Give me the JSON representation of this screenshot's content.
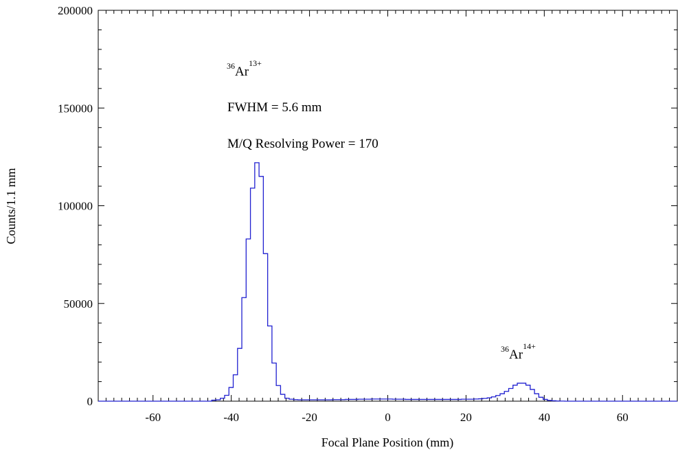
{
  "chart_data": {
    "type": "histogram",
    "xlabel": "Focal Plane Position (mm)",
    "ylabel": "Counts/1.1 mm",
    "xlim": [
      -74,
      74
    ],
    "ylim": [
      0,
      200000
    ],
    "x_ticks": [
      -60,
      -40,
      -20,
      0,
      20,
      40,
      60
    ],
    "y_ticks": [
      0,
      50000,
      100000,
      150000,
      200000
    ],
    "grid": false,
    "line_color": "#1f1fd0",
    "bin_width": 1.1,
    "series": [
      {
        "x": [
          -45.0,
          -43.9,
          -42.8,
          -41.7,
          -40.6,
          -39.5,
          -38.4,
          -37.3,
          -36.2,
          -35.1,
          -34.0,
          -32.9,
          -31.8,
          -30.7,
          -29.6,
          -28.5,
          -27.4,
          -26.3,
          -25.2,
          -24.1,
          -23.0,
          -21.9,
          -20.8,
          -19.7,
          -18.6,
          -17.5,
          -16.4,
          -15.3,
          -14.2,
          -13.1,
          -12.0,
          -10.9,
          -9.8,
          -8.7,
          -7.6,
          -6.5,
          -5.4,
          -4.3,
          -3.2,
          -2.1,
          -1.0,
          0.1,
          1.2,
          2.3,
          3.4,
          4.5,
          5.6,
          6.7,
          7.8,
          8.9,
          10.0,
          11.1,
          12.2,
          13.3,
          14.4,
          15.5,
          16.6,
          17.7,
          18.8,
          19.9,
          21.0,
          22.1,
          23.2,
          24.3,
          25.4,
          26.5,
          27.6,
          28.7,
          29.8,
          30.9,
          32.0,
          33.1,
          34.2,
          35.3,
          36.4,
          37.5,
          38.6,
          39.7,
          40.8,
          41.9,
          43.0,
          44.1
        ],
        "values": [
          500,
          700,
          1500,
          3000,
          7000,
          13500,
          27000,
          53000,
          83000,
          109000,
          122000,
          115000,
          75500,
          38500,
          19500,
          8000,
          3500,
          1500,
          1000,
          800,
          700,
          700,
          700,
          700,
          700,
          700,
          700,
          700,
          800,
          800,
          800,
          900,
          900,
          900,
          1000,
          1000,
          1000,
          1100,
          1100,
          1100,
          1100,
          1100,
          1000,
          1000,
          1000,
          900,
          900,
          900,
          900,
          900,
          900,
          900,
          900,
          900,
          900,
          900,
          900,
          900,
          1000,
          1000,
          1000,
          1100,
          1200,
          1400,
          1700,
          2200,
          2900,
          3800,
          5000,
          6500,
          8200,
          9200,
          9200,
          8200,
          6000,
          3800,
          2000,
          900,
          400,
          200,
          100,
          50
        ]
      }
    ],
    "annotations": [
      {
        "iso_mass": "36",
        "element": "Ar",
        "charge": "13+"
      },
      {
        "text": "FWHM = 5.6 mm"
      },
      {
        "text": "M/Q Resolving Power = 170"
      },
      {
        "iso_mass": "36",
        "element": "Ar",
        "charge": "14+"
      }
    ]
  }
}
